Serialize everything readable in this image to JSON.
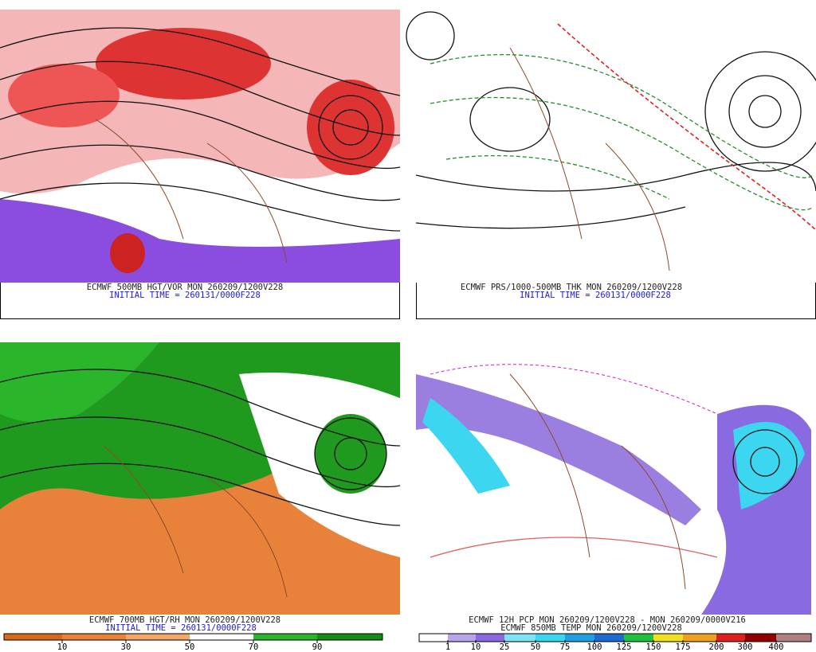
{
  "panels": [
    {
      "caption": [
        "ECMWF 500MB HGT/VOR MON 260209/1200V228",
        "INITIAL TIME = 260131/0000F228"
      ]
    },
    {
      "caption": [
        "ECMWF PRS/1000-500MB THK MON 260209/1200V228",
        "INITIAL TIME = 260131/0000F228"
      ]
    },
    {
      "caption": [
        "ECMWF 700MB HGT/RH MON 260209/1200V228",
        "INITIAL TIME = 260131/0000F228"
      ],
      "colorbar": [
        10,
        30,
        50,
        70,
        90
      ]
    },
    {
      "caption": [
        "ECMWF 12H PCP MON 260209/1200V228 - MON 260209/0000V216",
        "ECMWF 850MB TEMP MON 260209/1200V228"
      ],
      "colorbar": [
        1,
        10,
        25,
        50,
        75,
        100,
        125,
        150,
        175,
        200,
        300,
        400
      ]
    }
  ]
}
